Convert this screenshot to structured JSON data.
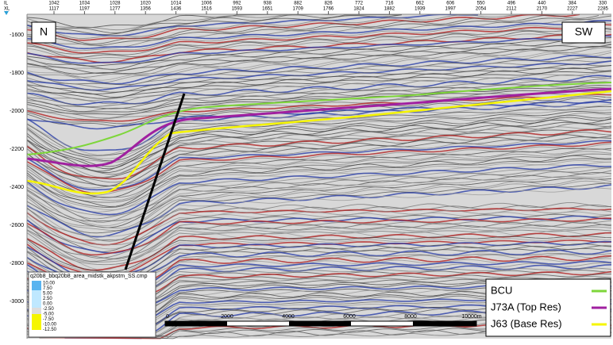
{
  "top_axis": {
    "row_labels": [
      "IL",
      "XL"
    ],
    "ticks": [
      [
        "1042",
        "1117"
      ],
      [
        "1034",
        "1197"
      ],
      [
        "1028",
        "1277"
      ],
      [
        "1020",
        "1356"
      ],
      [
        "1014",
        "1436"
      ],
      [
        "1006",
        "1516"
      ],
      [
        "992",
        "1593"
      ],
      [
        "938",
        "1651"
      ],
      [
        "882",
        "1709"
      ],
      [
        "826",
        "1766"
      ],
      [
        "772",
        "1824"
      ],
      [
        "716",
        "1882"
      ],
      [
        "662",
        "1939"
      ],
      [
        "606",
        "1997"
      ],
      [
        "550",
        "2054"
      ],
      [
        "496",
        "2112"
      ],
      [
        "440",
        "2170"
      ],
      [
        "384",
        "2227"
      ],
      [
        "330",
        "2285"
      ]
    ]
  },
  "left_axis": {
    "ticks": [
      "-1600",
      "-1800",
      "-2000",
      "-2200",
      "-2400",
      "-2600",
      "-2800",
      "-3000"
    ]
  },
  "corner_labels": {
    "left": "N",
    "right": "SW"
  },
  "colorbar": {
    "title": "q20b8_bbq20b8_area_midstk_akpstm_SS.cmp",
    "labels": [
      "10.00",
      "7.50",
      "5.00",
      "2.50",
      "0.00",
      "-2.50",
      "-5.00",
      "-7.50",
      "-10.00",
      "-12.50"
    ]
  },
  "scale_bar": {
    "labels": [
      "0",
      "2000",
      "4000",
      "6000",
      "8000",
      "10000m"
    ]
  },
  "legend": [
    {
      "name": "BCU",
      "color": "#7ed63a"
    },
    {
      "name": "J73A (Top Res)",
      "color": "#a020a0"
    },
    {
      "name": "J63 (Base Res)",
      "color": "#f5f500"
    }
  ]
}
